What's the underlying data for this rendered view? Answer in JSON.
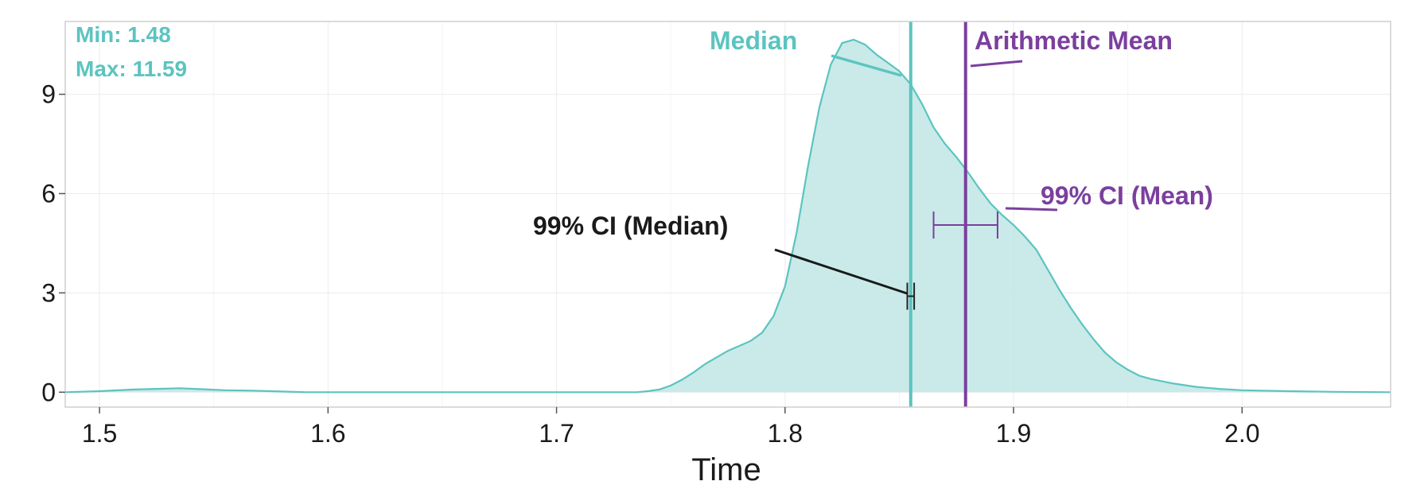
{
  "chart_data": {
    "type": "area",
    "xlabel": "Time",
    "ylabel": "",
    "xlim": [
      1.485,
      2.065
    ],
    "ylim": [
      -0.45,
      11.2
    ],
    "x_ticks": [
      1.5,
      1.6,
      1.7,
      1.8,
      1.9,
      2.0
    ],
    "x_tick_labels": [
      "1.5",
      "1.6",
      "1.7",
      "1.8",
      "1.9",
      "2.0"
    ],
    "y_ticks": [
      0,
      3,
      6,
      9
    ],
    "y_tick_labels": [
      "0",
      "3",
      "6",
      "9"
    ],
    "grid": true,
    "series": [
      {
        "x": [
          1.485,
          1.5,
          1.515,
          1.525,
          1.535,
          1.545,
          1.555,
          1.565,
          1.575,
          1.59,
          1.7,
          1.735,
          1.74,
          1.745,
          1.75,
          1.755,
          1.76,
          1.765,
          1.77,
          1.775,
          1.78,
          1.785,
          1.79,
          1.795,
          1.8,
          1.805,
          1.81,
          1.815,
          1.82,
          1.825,
          1.83,
          1.835,
          1.84,
          1.845,
          1.85,
          1.855,
          1.86,
          1.865,
          1.87,
          1.875,
          1.88,
          1.885,
          1.89,
          1.895,
          1.9,
          1.905,
          1.91,
          1.915,
          1.92,
          1.925,
          1.93,
          1.935,
          1.94,
          1.945,
          1.95,
          1.955,
          1.96,
          1.97,
          1.98,
          1.99,
          2.0,
          2.02,
          2.04,
          2.065
        ],
        "y": [
          0.0,
          0.03,
          0.08,
          0.1,
          0.12,
          0.09,
          0.06,
          0.05,
          0.03,
          0.0,
          0.0,
          0.0,
          0.03,
          0.08,
          0.2,
          0.38,
          0.6,
          0.85,
          1.05,
          1.25,
          1.4,
          1.55,
          1.8,
          2.3,
          3.2,
          4.8,
          6.8,
          8.6,
          9.9,
          10.55,
          10.65,
          10.5,
          10.2,
          9.95,
          9.7,
          9.3,
          8.7,
          8.0,
          7.5,
          7.1,
          6.65,
          6.15,
          5.7,
          5.35,
          5.05,
          4.7,
          4.3,
          3.7,
          3.1,
          2.55,
          2.05,
          1.6,
          1.2,
          0.9,
          0.68,
          0.5,
          0.4,
          0.26,
          0.16,
          0.1,
          0.06,
          0.03,
          0.01,
          0.0
        ]
      }
    ],
    "reference_lines": [
      {
        "label": "Median",
        "x": 1.855,
        "color": "#5bc4c0"
      },
      {
        "label": "Arithmetic Mean",
        "x": 1.879,
        "color": "#7b3f9e"
      }
    ],
    "confidence_intervals": [
      {
        "label": "99% CI (Median)",
        "x_low": 1.8535,
        "x_high": 1.8565,
        "y": 2.9,
        "color": "#222222"
      },
      {
        "label": "99% CI (Mean)",
        "x_low": 1.865,
        "x_high": 1.893,
        "y": 5.05,
        "color": "#7b3f9e"
      }
    ],
    "annotations": {
      "min": "Min: 1.48",
      "max": "Max: 11.59"
    }
  },
  "colors": {
    "fill": "#bfe6e4",
    "stroke": "#5bc4c0",
    "median": "#5bc4c0",
    "mean": "#7b3f9e",
    "grid": "#ececec",
    "panel_border": "#cfcfcf",
    "label_dark": "#1a1a1a"
  }
}
